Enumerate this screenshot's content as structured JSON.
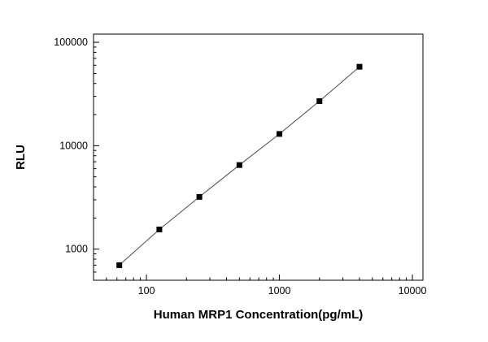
{
  "chart_data": {
    "type": "scatter",
    "title": "",
    "xlabel": "Human MRP1 Concentration(pg/mL)",
    "ylabel": "RLU",
    "xscale": "log",
    "yscale": "log",
    "xlim": [
      40,
      12000
    ],
    "ylim": [
      500,
      120000
    ],
    "x_major_ticks": [
      100,
      1000,
      10000
    ],
    "y_major_ticks": [
      1000,
      10000,
      100000
    ],
    "x": [
      62.5,
      125,
      250,
      500,
      1000,
      2000,
      4000
    ],
    "y": [
      700,
      1550,
      3200,
      6500,
      13000,
      27000,
      58000
    ],
    "legend": null,
    "grid": false,
    "marker": "filled-square",
    "marker_color": "#000000",
    "line_color": "#4d4d4d",
    "frame_color": "#000000",
    "background": "#ffffff"
  }
}
